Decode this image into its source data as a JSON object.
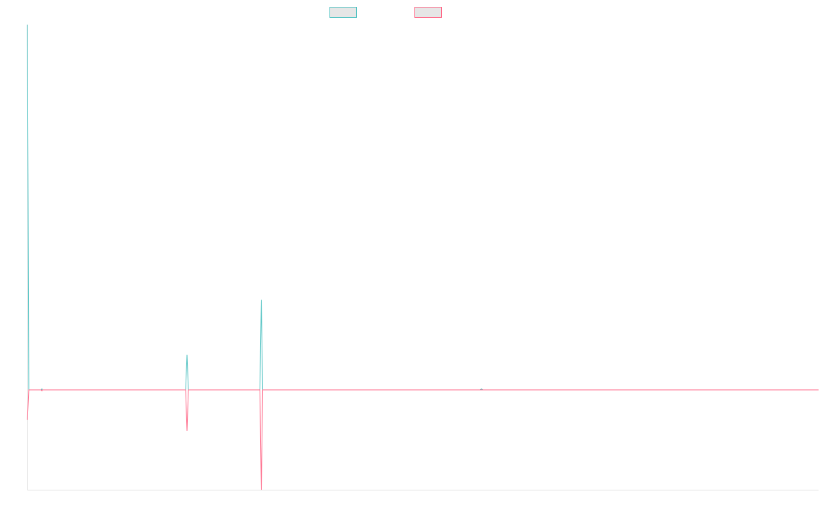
{
  "chart_data": {
    "type": "line",
    "title": "",
    "xlabel": "",
    "ylabel": "",
    "grid": false,
    "legend": "top-center",
    "x": [
      0,
      1,
      2,
      3,
      4,
      5,
      6,
      7,
      8,
      9,
      10,
      11,
      12,
      13,
      14,
      15,
      16,
      17,
      18,
      19,
      20,
      21,
      22,
      23,
      24,
      25,
      26,
      27,
      28,
      29,
      30,
      31,
      32,
      33,
      34,
      35,
      36,
      37,
      38,
      39,
      40,
      41,
      42,
      43,
      44,
      45,
      46,
      47,
      48,
      49,
      50,
      51,
      52,
      53,
      54,
      55,
      56,
      57,
      58,
      59,
      60,
      61,
      62,
      63,
      64,
      65,
      66,
      67,
      68,
      69,
      70,
      71,
      72,
      73,
      74,
      75,
      76,
      77,
      78,
      79,
      80,
      81,
      82,
      83,
      84,
      85,
      86,
      87,
      88,
      89,
      90,
      91,
      92,
      93,
      94,
      95,
      96,
      97,
      98,
      99,
      100,
      101,
      102,
      103,
      104,
      105,
      106,
      107,
      108,
      109,
      110,
      111,
      112,
      113,
      114,
      115,
      116,
      117,
      118,
      119,
      120,
      121,
      122,
      123,
      124,
      125,
      126,
      127,
      128,
      129,
      130,
      131,
      132,
      133,
      134,
      135,
      136,
      137,
      138,
      139,
      140,
      141,
      142,
      143,
      144,
      145,
      146,
      147,
      148,
      149,
      150,
      151,
      152,
      153,
      154,
      155,
      156,
      157,
      158,
      159,
      160,
      161,
      162,
      163,
      164,
      165,
      166,
      167,
      168,
      169,
      170,
      171,
      172,
      173,
      174,
      175,
      176,
      177,
      178,
      179,
      180,
      181,
      182,
      183,
      184,
      185,
      186,
      187,
      188,
      189,
      190,
      191,
      192,
      193,
      194,
      195,
      196,
      197,
      198,
      199,
      200,
      201,
      202,
      203,
      204,
      205,
      206,
      207,
      208,
      209,
      210,
      211,
      212,
      213,
      214,
      215,
      216,
      217,
      218,
      219,
      220,
      221,
      222,
      223,
      224,
      225,
      226,
      227,
      228,
      229,
      230,
      231,
      232,
      233,
      234,
      235,
      236,
      237,
      238,
      239,
      240,
      241,
      242,
      243,
      244,
      245,
      246,
      247,
      248,
      249,
      250,
      251,
      252,
      253,
      254,
      255,
      256,
      257,
      258,
      259,
      260,
      261,
      262,
      263,
      264,
      265,
      266,
      267,
      268,
      269,
      270,
      271,
      272,
      273,
      274,
      275,
      276,
      277,
      278,
      279,
      280,
      281,
      282,
      283,
      284,
      285,
      286,
      287,
      288,
      289,
      290,
      291,
      292,
      293,
      294,
      295,
      296,
      297,
      298,
      299,
      300,
      301,
      302,
      303,
      304,
      305,
      306,
      307,
      308,
      309,
      310,
      311,
      312,
      313,
      314,
      315,
      316,
      317,
      318,
      319,
      320,
      321,
      322,
      323,
      324,
      325,
      326,
      327,
      328,
      329,
      330,
      331,
      332,
      333,
      334,
      335,
      336,
      337,
      338,
      339,
      340,
      341,
      342,
      343,
      344,
      345,
      346,
      347,
      348,
      349,
      350,
      351,
      352,
      353,
      354,
      355,
      356,
      357,
      358,
      359,
      360,
      361,
      362,
      363,
      364,
      365,
      366,
      367,
      368,
      369,
      370,
      371,
      372,
      373,
      374,
      375,
      376,
      377,
      378,
      379,
      380,
      381,
      382,
      383,
      384,
      385,
      386,
      387,
      388,
      389,
      390,
      391,
      392,
      393,
      394,
      395,
      396,
      397,
      398,
      399,
      400,
      401,
      402,
      403,
      404,
      405,
      406,
      407,
      408,
      409,
      410,
      411,
      412,
      413,
      414,
      415,
      416,
      417,
      418,
      419,
      420,
      421,
      422,
      423,
      424,
      425,
      426,
      427,
      428,
      429,
      430,
      431,
      432,
      433,
      434,
      435,
      436,
      437,
      438,
      439,
      440,
      441,
      442,
      443,
      444,
      445,
      446,
      447,
      448,
      449,
      450,
      451,
      452,
      453,
      454,
      455,
      456,
      457,
      458,
      459,
      460,
      461,
      462,
      463,
      464,
      465,
      466,
      467,
      468,
      469,
      470,
      471,
      472,
      473,
      474,
      475,
      476,
      477,
      478,
      479,
      480,
      481,
      482,
      483,
      484,
      485,
      486,
      487,
      488,
      489,
      490,
      491,
      492,
      493,
      494,
      495,
      496,
      497,
      498,
      499,
      500,
      501,
      502,
      503,
      504,
      505,
      506,
      507,
      508,
      509,
      510,
      511,
      512,
      513,
      514,
      515,
      516,
      517,
      518,
      519,
      520,
      521,
      522,
      523,
      524,
      525,
      526,
      527,
      528,
      529,
      530,
      531,
      532,
      533,
      534,
      535,
      536,
      537,
      538,
      539,
      540,
      541,
      542,
      543,
      544,
      545,
      546,
      547,
      548,
      549,
      550,
      551,
      552,
      553,
      554,
      555,
      556,
      557,
      558,
      559,
      560,
      561,
      562,
      563,
      564,
      565,
      566,
      567,
      568,
      569,
      570,
      571,
      572,
      573,
      574,
      575
    ],
    "xlim": [
      0,
      575
    ],
    "ylim": [
      -100,
      365
    ],
    "series": [
      {
        "color": "#4bc0c0",
        "fill": "#e6e6e6",
        "points": [
          [
            0,
            365
          ],
          [
            1,
            0
          ],
          [
            10,
            0
          ],
          [
            10.5,
            1
          ],
          [
            11,
            0
          ],
          [
            115,
            0
          ],
          [
            116,
            35
          ],
          [
            117,
            0
          ],
          [
            169,
            0
          ],
          [
            170,
            90
          ],
          [
            171,
            0
          ],
          [
            329,
            0
          ],
          [
            330,
            1
          ],
          [
            331,
            0
          ],
          [
            575,
            0
          ]
        ]
      },
      {
        "color": "#ff6384",
        "fill": "#e6e6e6",
        "points": [
          [
            0,
            -30
          ],
          [
            1,
            0
          ],
          [
            10,
            0
          ],
          [
            10.5,
            -1
          ],
          [
            11,
            0
          ],
          [
            115,
            0
          ],
          [
            116,
            -41
          ],
          [
            117,
            0
          ],
          [
            169,
            0
          ],
          [
            170,
            -100
          ],
          [
            171,
            0
          ],
          [
            575,
            0
          ]
        ]
      }
    ]
  }
}
